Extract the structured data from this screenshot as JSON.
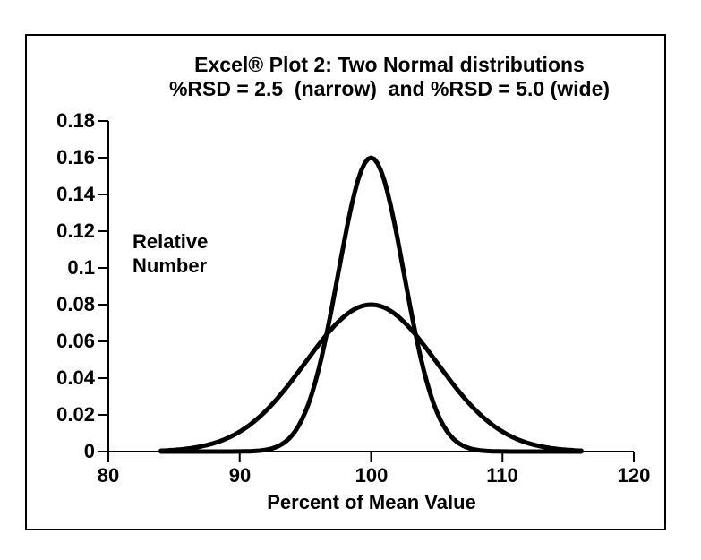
{
  "chart_data": {
    "type": "line",
    "title": [
      "Excel® Plot 2: Two Normal distributions",
      "%RSD = 2.5  (narrow)  and %RSD = 5.0 (wide)"
    ],
    "xlabel": "Percent of Mean Value",
    "ylabel": "Relative Number",
    "xlim": [
      80,
      120
    ],
    "ylim": [
      0,
      0.18
    ],
    "x_ticks": [
      "80",
      "90",
      "100",
      "110",
      "120"
    ],
    "y_ticks": [
      "0.18",
      "0.16",
      "0.14",
      "0.12",
      "0.1",
      "0.08",
      "0.06",
      "0.04",
      "0.02",
      "0"
    ],
    "grid": false,
    "legend": "none",
    "line_color": "#000000",
    "line_width": 5,
    "axis_color": "#000000",
    "series": [
      {
        "name": "narrow",
        "distribution": "normal",
        "mean": 100,
        "sd": 2.5,
        "rsd_percent": 2.5,
        "peak_value": 0.16,
        "x_start": 84,
        "x_end": 116
      },
      {
        "name": "wide",
        "distribution": "normal",
        "mean": 100,
        "sd": 5.0,
        "rsd_percent": 5.0,
        "peak_value": 0.08,
        "x_start": 84,
        "x_end": 116
      }
    ]
  }
}
